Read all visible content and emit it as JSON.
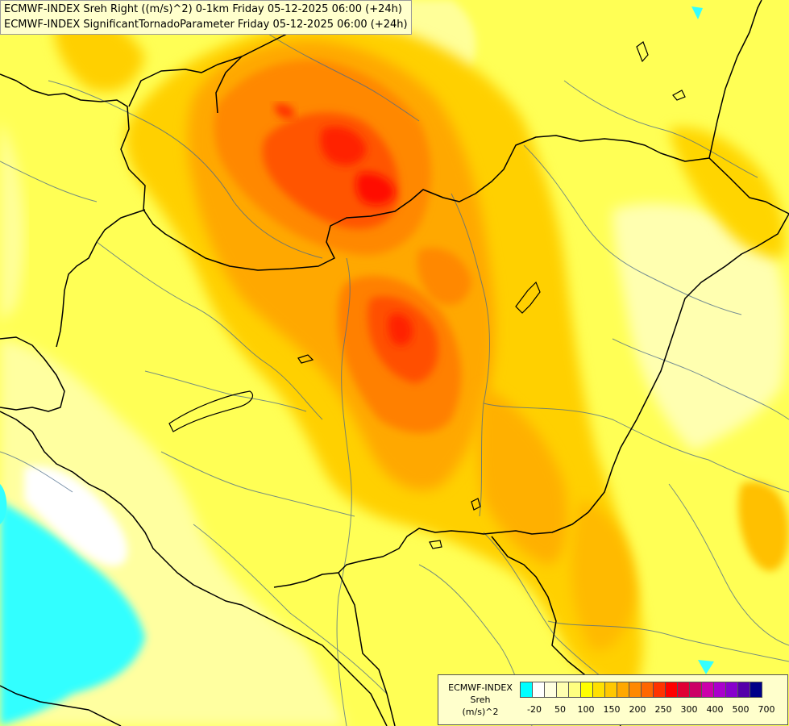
{
  "titles": {
    "line1": "ECMWF-INDEX Sreh Right ((m/s)^2) 0-1km Friday 05-12-2025 06:00 (+24h)",
    "line2": "ECMWF-INDEX SignificantTornadoParameter Friday 05-12-2025 06:00 (+24h)"
  },
  "legend": {
    "product": "ECMWF-INDEX",
    "variable": "Sreh",
    "unit": "(m/s)^2",
    "colors": [
      "#00ffff",
      "#ffffff",
      "#ffffe0",
      "#ffffb0",
      "#ffff80",
      "#ffff00",
      "#ffe000",
      "#ffc800",
      "#ffa800",
      "#ff8800",
      "#ff6600",
      "#ff3300",
      "#ff0000",
      "#e00033",
      "#cc0066",
      "#cc00aa",
      "#aa00cc",
      "#8800cc",
      "#5500aa",
      "#000088"
    ],
    "tick_labels": [
      "-20",
      "50",
      "100",
      "150",
      "200",
      "250",
      "300",
      "400",
      "500",
      "700"
    ]
  },
  "colors": {
    "border": "#000000",
    "rivers": "#4a6a8a"
  }
}
